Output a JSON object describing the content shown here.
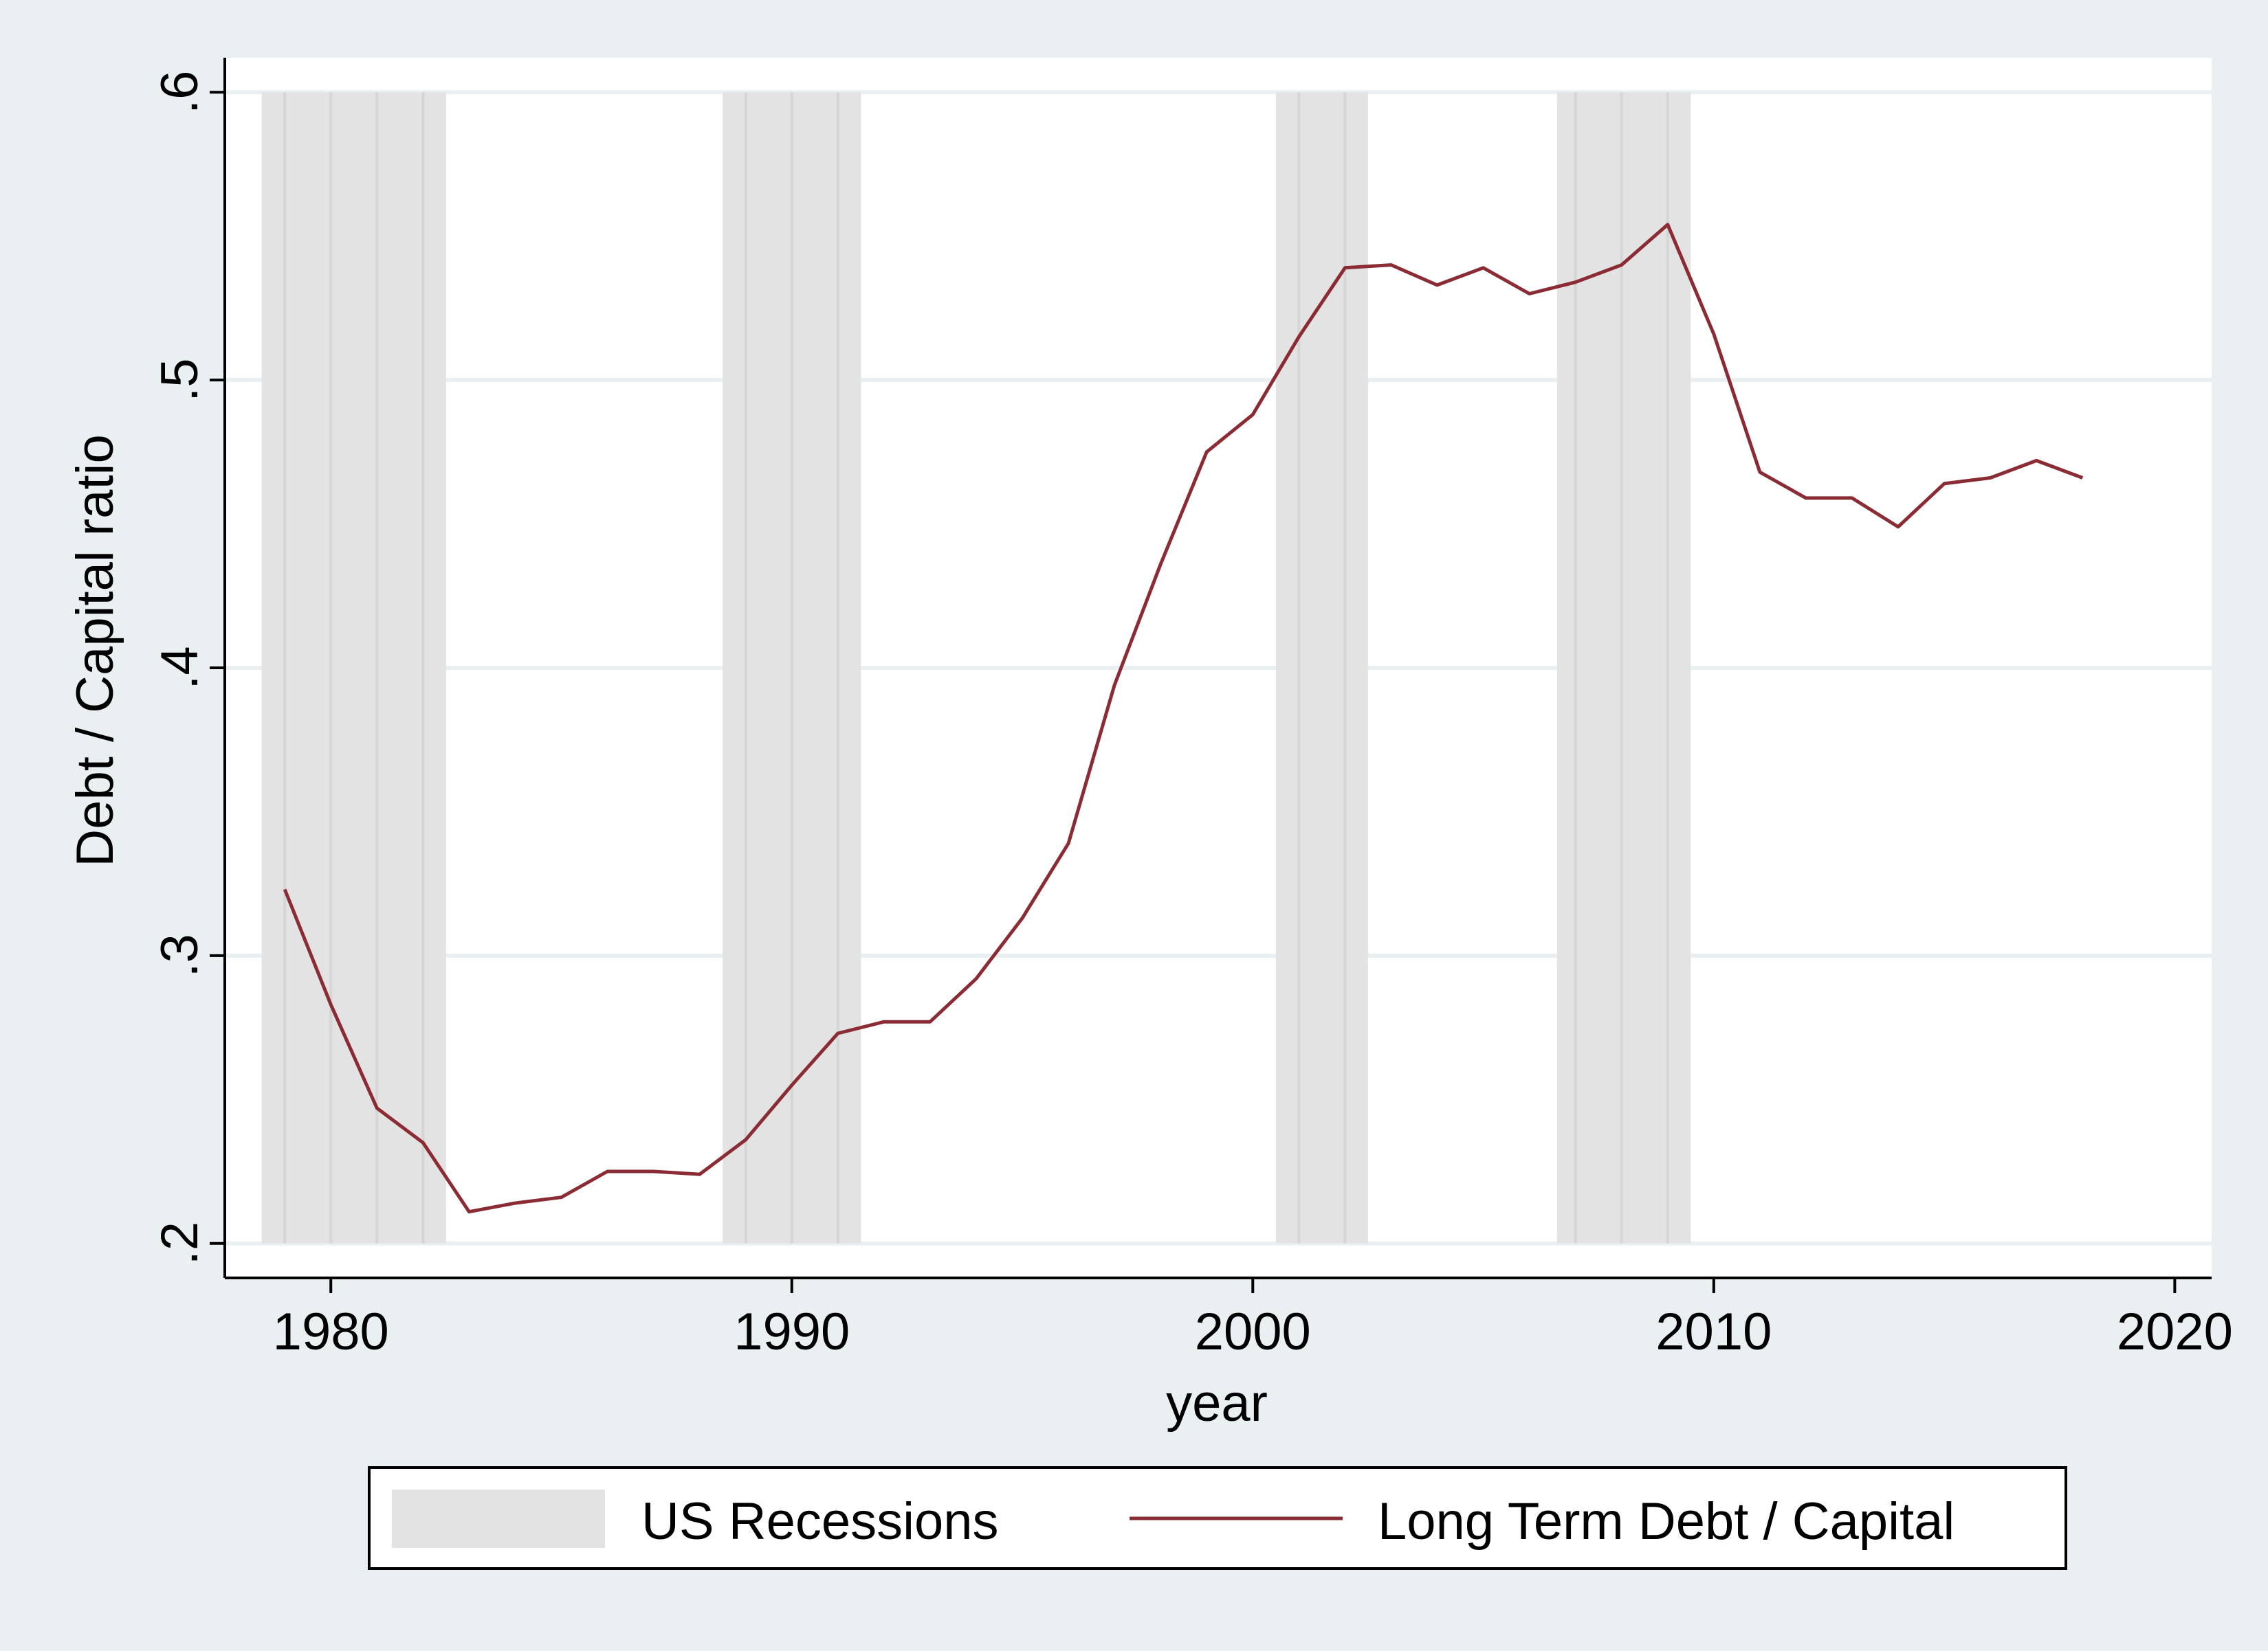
{
  "chart_data": {
    "type": "line",
    "title": "",
    "xlabel": "year",
    "ylabel": "Debt / Capital ratio",
    "xlim": [
      1977.7,
      2020.8
    ],
    "ylim": [
      0.188,
      0.612
    ],
    "x_ticks": [
      1980,
      1990,
      2000,
      2010,
      2020
    ],
    "x_tick_labels": [
      "1980",
      "1990",
      "2000",
      "2010",
      "2020"
    ],
    "y_ticks": [
      0.2,
      0.3,
      0.4,
      0.5,
      0.6
    ],
    "y_tick_labels": [
      ".2",
      ".3",
      ".4",
      ".5",
      ".6"
    ],
    "grid": true,
    "legend_position": "bottom",
    "recessions": [
      {
        "start": 1978.5,
        "end": 1982.5
      },
      {
        "start": 1988.5,
        "end": 1991.5
      },
      {
        "start": 2000.5,
        "end": 2002.5
      },
      {
        "start": 2006.6,
        "end": 2009.5
      }
    ],
    "series": [
      {
        "name": "Long Term Debt / Capital",
        "color": "#8b2c34",
        "x": [
          1979,
          1980,
          1981,
          1982,
          1983,
          1984,
          1985,
          1986,
          1987,
          1988,
          1989,
          1990,
          1991,
          1992,
          1993,
          1994,
          1995,
          1996,
          1997,
          1998,
          1999,
          2000,
          2001,
          2002,
          2003,
          2004,
          2005,
          2006,
          2007,
          2008,
          2009,
          2010,
          2011,
          2012,
          2013,
          2014,
          2015,
          2016,
          2017,
          2018
        ],
        "y": [
          0.323,
          0.283,
          0.247,
          0.235,
          0.211,
          0.214,
          0.216,
          0.225,
          0.225,
          0.224,
          0.236,
          0.255,
          0.273,
          0.277,
          0.277,
          0.292,
          0.313,
          0.339,
          0.394,
          0.436,
          0.475,
          0.488,
          0.515,
          0.539,
          0.54,
          0.533,
          0.539,
          0.53,
          0.534,
          0.54,
          0.554,
          0.516,
          0.468,
          0.459,
          0.459,
          0.449,
          0.464,
          0.466,
          0.472,
          0.466
        ]
      }
    ],
    "legend": [
      {
        "label": "US Recessions",
        "kind": "band",
        "color": "#e3e3e3"
      },
      {
        "label": "Long Term Debt / Capital",
        "kind": "line",
        "color": "#8b2c34"
      }
    ]
  }
}
